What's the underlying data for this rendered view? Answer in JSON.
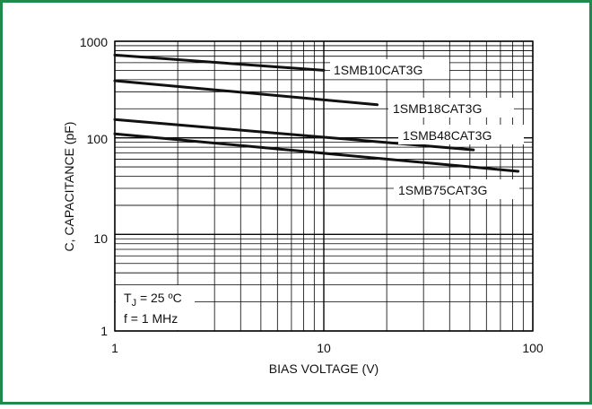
{
  "frame_color": "#1f8a4c",
  "chart_data": {
    "type": "line",
    "title": "",
    "xlabel": "BIAS VOLTAGE (V)",
    "ylabel": "C, CAPACITANCE (pF)",
    "xscale": "log",
    "yscale": "log",
    "xlim": [
      1,
      100
    ],
    "ylim": [
      1,
      1000
    ],
    "x_ticks": [
      "1",
      "10",
      "100"
    ],
    "y_ticks": [
      "1",
      "10",
      "100",
      "1000"
    ],
    "grid": true,
    "series": [
      {
        "name": "1SMB10CAT3G",
        "x": [
          1,
          10
        ],
        "y": [
          720,
          500
        ]
      },
      {
        "name": "1SMB18CAT3G",
        "x": [
          1,
          18
        ],
        "y": [
          390,
          220
        ]
      },
      {
        "name": "1SMB48CAT3G",
        "x": [
          1,
          52
        ],
        "y": [
          155,
          75
        ]
      },
      {
        "name": "1SMB75CAT3G",
        "x": [
          1,
          85
        ],
        "y": [
          110,
          45
        ]
      }
    ],
    "annotation": {
      "line1_prefix": "T",
      "line1_sub": "J",
      "line1_rest": " = 25 ºC",
      "line2": "f = 1 MHz"
    }
  }
}
